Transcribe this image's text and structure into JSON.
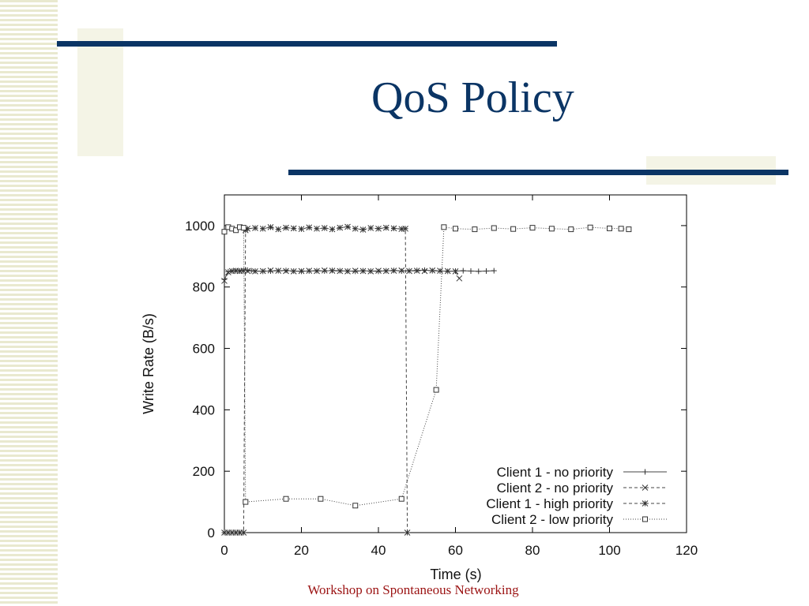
{
  "slide": {
    "title": "QoS Policy",
    "footer": "Workshop on Spontaneous Networking",
    "colors": {
      "accent": "#0b3565",
      "footer": "#9b1212",
      "stripe": "#e9e9cf"
    }
  },
  "chart_data": {
    "type": "line",
    "title": "",
    "xlabel": "Time (s)",
    "ylabel": "Write Rate (B/s)",
    "xlim": [
      0,
      120
    ],
    "ylim": [
      0,
      1100
    ],
    "xticks": [
      0,
      20,
      40,
      60,
      80,
      100,
      120
    ],
    "yticks": [
      0,
      200,
      400,
      600,
      800,
      1000
    ],
    "grid": false,
    "legend_position": "bottom-right",
    "series": [
      {
        "name": "Client 1 - no priority",
        "line": "solid",
        "marker": "plus",
        "x": [
          0,
          1,
          2,
          3,
          4,
          5,
          6,
          7,
          8,
          10,
          12,
          14,
          16,
          18,
          20,
          22,
          24,
          26,
          28,
          30,
          32,
          34,
          36,
          38,
          40,
          42,
          44,
          46,
          48,
          50,
          52,
          54,
          56,
          58,
          60,
          62,
          64,
          66,
          68,
          70
        ],
        "y": [
          825,
          850,
          852,
          853,
          852,
          854,
          855,
          853,
          852,
          851,
          852,
          853,
          854,
          852,
          851,
          852,
          853,
          852,
          854,
          853,
          852,
          851,
          853,
          852,
          851,
          853,
          854,
          852,
          853,
          854,
          855,
          853,
          852,
          851,
          852,
          853,
          852,
          851,
          852,
          853
        ]
      },
      {
        "name": "Client 2 - no priority",
        "line": "dashed",
        "marker": "cross",
        "x": [
          0,
          1,
          2,
          3,
          4,
          5,
          6,
          8,
          10,
          12,
          14,
          16,
          18,
          20,
          22,
          24,
          26,
          28,
          30,
          32,
          34,
          36,
          38,
          40,
          42,
          44,
          46,
          48,
          50,
          52,
          54,
          56,
          58,
          60,
          61
        ],
        "y": [
          820,
          848,
          852,
          853,
          852,
          853,
          852,
          851,
          852,
          854,
          853,
          852,
          851,
          852,
          853,
          852,
          854,
          853,
          852,
          851,
          853,
          852,
          851,
          853,
          852,
          853,
          854,
          852,
          853,
          852,
          854,
          853,
          852,
          851,
          828
        ]
      },
      {
        "name": "Client 1 - high priority",
        "line": "dashed",
        "marker": "star",
        "x": [
          0,
          1,
          2,
          3,
          4,
          5,
          5.5,
          6,
          8,
          10,
          12,
          14,
          16,
          18,
          20,
          22,
          24,
          26,
          28,
          30,
          32,
          34,
          36,
          38,
          40,
          42,
          44,
          46,
          47,
          47.5
        ],
        "y": [
          0,
          0,
          0,
          0,
          0,
          0,
          985,
          990,
          992,
          990,
          995,
          988,
          993,
          991,
          989,
          994,
          990,
          992,
          988,
          993,
          996,
          990,
          987,
          992,
          990,
          993,
          991,
          989,
          990,
          0
        ]
      },
      {
        "name": "Client 2 - low priority",
        "line": "dotted",
        "marker": "square",
        "x": [
          0,
          1,
          2,
          3,
          4,
          5,
          5.5,
          16,
          25,
          34,
          46,
          55,
          57,
          60,
          65,
          70,
          75,
          80,
          85,
          90,
          95,
          100,
          103,
          105
        ],
        "y": [
          980,
          995,
          990,
          985,
          995,
          993,
          100,
          110,
          110,
          88,
          110,
          465,
          995,
          990,
          988,
          992,
          989,
          993,
          990,
          988,
          994,
          991,
          990,
          988
        ]
      }
    ]
  }
}
